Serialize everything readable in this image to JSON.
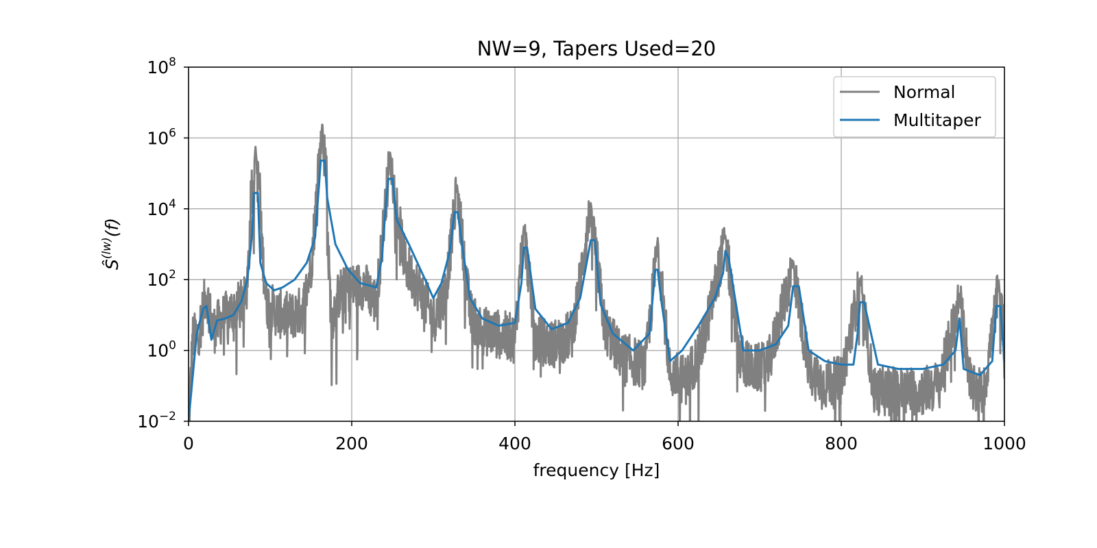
{
  "chart_data": {
    "type": "line",
    "title": "NW=9, Tapers Used=20",
    "xlabel": "frequency [Hz]",
    "ylabel": "Ŝ(lw)(f)",
    "xlim": [
      0,
      1000
    ],
    "ylim": [
      0.01,
      100000000
    ],
    "yscale": "log",
    "grid": true,
    "legend_position": "top-right",
    "x_ticks": [
      {
        "value": 0,
        "label": "0"
      },
      {
        "value": 200,
        "label": "200"
      },
      {
        "value": 400,
        "label": "400"
      },
      {
        "value": 600,
        "label": "600"
      },
      {
        "value": 800,
        "label": "800"
      },
      {
        "value": 1000,
        "label": "1000"
      }
    ],
    "y_ticks": [
      {
        "value": 0.01,
        "base": "10",
        "exp": "−2"
      },
      {
        "value": 1,
        "base": "10",
        "exp": "0"
      },
      {
        "value": 100,
        "base": "10",
        "exp": "2"
      },
      {
        "value": 10000,
        "base": "10",
        "exp": "4"
      },
      {
        "value": 1000000,
        "base": "10",
        "exp": "6"
      },
      {
        "value": 100000000,
        "base": "10",
        "exp": "8"
      }
    ],
    "peaks": [
      {
        "f": 82,
        "normal": 600000,
        "multitaper": 28000
      },
      {
        "f": 164,
        "normal": 2800000,
        "multitaper": 230000
      },
      {
        "f": 247,
        "normal": 400000,
        "multitaper": 70000
      },
      {
        "f": 329,
        "normal": 50000,
        "multitaper": 8000
      },
      {
        "f": 411,
        "normal": 3500,
        "multitaper": 800
      },
      {
        "f": 493,
        "normal": 15000,
        "multitaper": 1300
      },
      {
        "f": 575,
        "normal": 1500,
        "multitaper": 190
      },
      {
        "f": 658,
        "normal": 1800,
        "multitaper": 650
      },
      {
        "f": 741,
        "normal": 350,
        "multitaper": 65
      },
      {
        "f": 823,
        "normal": 110,
        "multitaper": 23
      },
      {
        "f": 945,
        "normal": 40,
        "multitaper": 8
      },
      {
        "f": 993,
        "normal": 100,
        "multitaper": 18
      }
    ],
    "series": [
      {
        "name": "Normal",
        "color": "#808080",
        "x": [
          0,
          5,
          12,
          22,
          30,
          40,
          55,
          70,
          82,
          95,
          110,
          125,
          140,
          150,
          164,
          175,
          185,
          200,
          215,
          230,
          247,
          265,
          285,
          300,
          315,
          329,
          345,
          360,
          380,
          400,
          411,
          425,
          445,
          470,
          493,
          510,
          530,
          560,
          575,
          590,
          610,
          630,
          658,
          675,
          690,
          710,
          741,
          760,
          780,
          800,
          823,
          840,
          860,
          880,
          900,
          920,
          945,
          960,
          975,
          993,
          1000
        ],
        "values": [
          0.01,
          3,
          4,
          60,
          5,
          10,
          20,
          35,
          600000,
          30,
          15,
          12,
          20,
          300,
          2800000,
          10,
          60,
          80,
          100,
          30,
          400000,
          400,
          60,
          10,
          60,
          50000,
          15,
          5,
          4,
          3,
          3500,
          3,
          2,
          4,
          15000,
          6,
          1,
          0.5,
          1500,
          0.3,
          0.2,
          2,
          1800,
          1,
          0.4,
          0.5,
          350,
          0.4,
          0.15,
          0.2,
          110,
          0.1,
          0.1,
          0.1,
          0.1,
          0.15,
          40,
          0.1,
          0.1,
          100,
          0.4
        ]
      },
      {
        "name": "Multitaper",
        "color": "#1f77b4",
        "x": [
          0,
          10,
          18,
          22,
          28,
          35,
          45,
          55,
          65,
          72,
          78,
          80,
          85,
          88,
          95,
          105,
          115,
          130,
          145,
          155,
          160,
          162,
          167,
          170,
          180,
          195,
          210,
          220,
          230,
          237,
          242,
          245,
          250,
          255,
          270,
          290,
          300,
          310,
          320,
          326,
          330,
          335,
          345,
          360,
          380,
          400,
          408,
          411,
          415,
          425,
          445,
          465,
          480,
          488,
          493,
          498,
          505,
          520,
          545,
          565,
          572,
          575,
          579,
          590,
          605,
          625,
          645,
          655,
          658,
          662,
          680,
          700,
          720,
          735,
          741,
          748,
          760,
          780,
          800,
          815,
          820,
          823,
          828,
          845,
          870,
          900,
          925,
          940,
          945,
          950,
          970,
          985,
          990,
          995,
          1000
        ],
        "values": [
          0.01,
          3,
          15,
          18,
          2,
          7,
          8,
          10,
          25,
          100,
          2000,
          28000,
          28000,
          300,
          80,
          50,
          60,
          100,
          300,
          1500,
          50000,
          230000,
          230000,
          20000,
          1000,
          200,
          80,
          70,
          60,
          400,
          15000,
          70000,
          70000,
          5000,
          1000,
          100,
          30,
          80,
          600,
          8000,
          8000,
          1000,
          30,
          8,
          5,
          6,
          80,
          800,
          800,
          15,
          4,
          6,
          30,
          300,
          1300,
          1300,
          20,
          3,
          1,
          3,
          190,
          190,
          30,
          0.5,
          1,
          5,
          30,
          150,
          650,
          400,
          1,
          1,
          1.5,
          5,
          65,
          65,
          1,
          0.5,
          0.4,
          0.4,
          3,
          23,
          23,
          0.4,
          0.3,
          0.3,
          0.4,
          1,
          8,
          0.3,
          0.2,
          0.5,
          18,
          18,
          0.5
        ]
      }
    ]
  }
}
